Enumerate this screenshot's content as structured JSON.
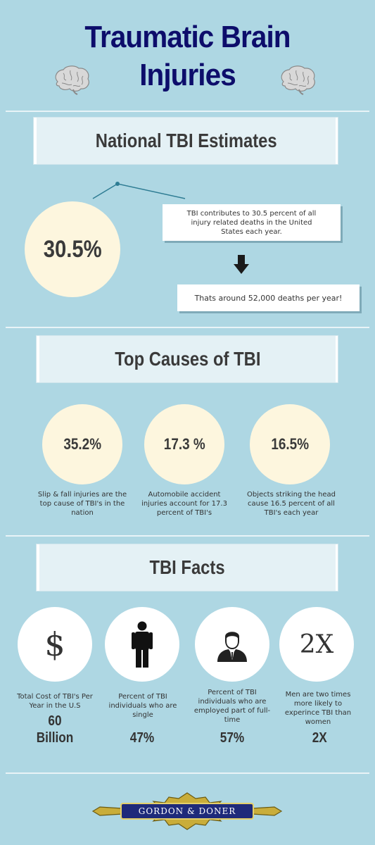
{
  "header": {
    "title_line1": "Traumatic Brain",
    "title_line2": "Injuries"
  },
  "section1": {
    "heading": "National TBI Estimates",
    "big_stat": "30.5%",
    "fact_text": "TBI contributes to 30.5 percent of all injury related deaths in the United States each year.",
    "followup_text": "Thats around 52,000 deaths per year!"
  },
  "section2": {
    "heading": "Top Causes of TBI",
    "causes": [
      {
        "value": "35.2%",
        "caption": "Slip & fall injuries are the top cause of TBI's in the nation"
      },
      {
        "value": "17.3 %",
        "caption": "Automobile accident injuries account for 17.3 percent of TBI's"
      },
      {
        "value": "16.5%",
        "caption": "Objects striking the head cause 16.5 percent of all TBI's each year"
      }
    ]
  },
  "section3": {
    "heading": "TBI Facts",
    "facts": [
      {
        "icon": "dollar-icon",
        "icon_text": "$",
        "caption": "Total Cost of TBI's Per Year in the U.S",
        "stat": "60 Billion"
      },
      {
        "icon": "person-icon",
        "caption": "Percent of TBI individuals who are single",
        "stat": "47%"
      },
      {
        "icon": "businessman-icon",
        "caption": "Percent of TBI individuals who are employed part of full-time",
        "stat": "57%"
      },
      {
        "icon": "two-x-icon",
        "icon_text": "2X",
        "caption": "Men are two times more likely to experince TBI than women",
        "stat": "2X"
      }
    ]
  },
  "footer": {
    "logo_text": "Gordon & Doner"
  },
  "colors": {
    "background": "#aed7e3",
    "title": "#0d0d6b",
    "cream_circle": "#fdf6de",
    "logo_blue": "#1e2a7a",
    "logo_gold": "#b89a2a"
  }
}
